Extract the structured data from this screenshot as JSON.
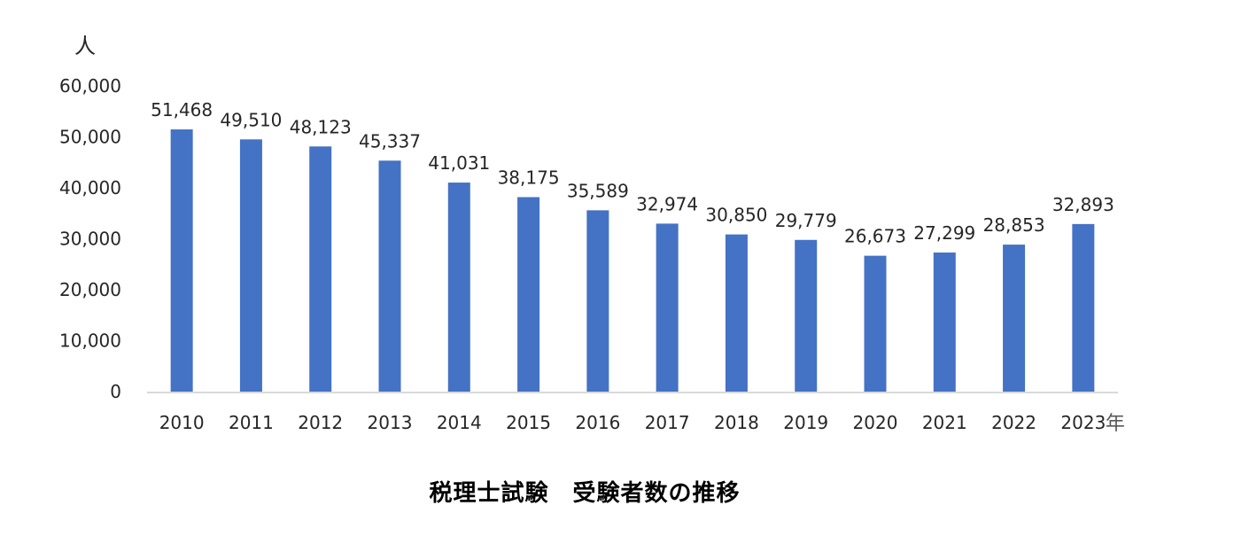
{
  "chart_data": {
    "type": "bar",
    "categories": [
      "2010",
      "2011",
      "2012",
      "2013",
      "2014",
      "2015",
      "2016",
      "2017",
      "2018",
      "2019",
      "2020",
      "2021",
      "2022",
      "2023"
    ],
    "values": [
      51468,
      49510,
      48123,
      45337,
      41031,
      38175,
      35589,
      32974,
      30850,
      29779,
      26673,
      27299,
      28853,
      32893
    ],
    "value_labels": [
      "51,468",
      "49,510",
      "48,123",
      "45,337",
      "41,031",
      "38,175",
      "35,589",
      "32,974",
      "30,850",
      "29,779",
      "26,673",
      "27,299",
      "28,853",
      "32,893"
    ],
    "y_ticks": [
      "0",
      "10,000",
      "20,000",
      "30,000",
      "40,000",
      "50,000",
      "60,000"
    ],
    "y_tick_values": [
      0,
      10000,
      20000,
      30000,
      40000,
      50000,
      60000
    ],
    "ylabel": "人",
    "xlabel": "年",
    "ylim": [
      0,
      60000
    ],
    "grid": false,
    "bar_color": "#4472C4",
    "axis_color": "#D9D9D9",
    "caption": "税理士試験　受験者数の推移"
  }
}
